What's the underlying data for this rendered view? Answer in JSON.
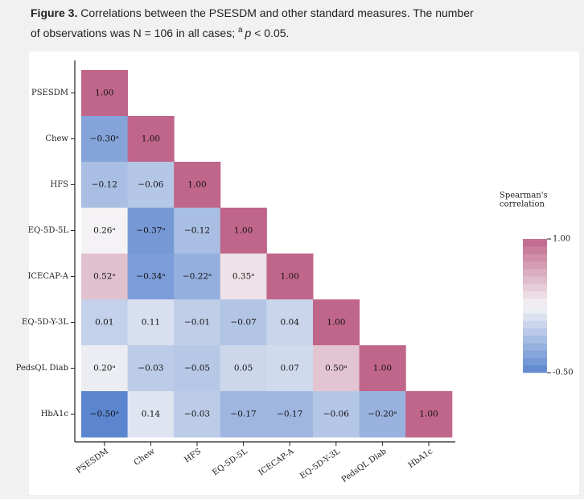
{
  "caption": {
    "label": "Figure 3.",
    "line1": " Correlations between the PSESDM and other standard measures. The number",
    "line2_start": "of observations was N = 106 in all cases; ",
    "superscript": "a",
    "italic": "p",
    "line2_end": " < 0.05."
  },
  "chart_data": {
    "type": "heatmap",
    "rows": [
      "PSESDM",
      "Chew",
      "HFS",
      "EQ-5D-5L",
      "ICECAP-A",
      "EQ-5D-Y-3L",
      "PedsQL Diab",
      "HbA1c"
    ],
    "columns": [
      "PSESDM",
      "Chew",
      "HFS",
      "EQ-5D-5L",
      "ICECAP-A",
      "EQ-5D-Y-3L",
      "PedsQL Diab",
      "HbA1c"
    ],
    "values": [
      [
        1.0,
        null,
        null,
        null,
        null,
        null,
        null,
        null
      ],
      [
        -0.3,
        1.0,
        null,
        null,
        null,
        null,
        null,
        null
      ],
      [
        -0.12,
        -0.06,
        1.0,
        null,
        null,
        null,
        null,
        null
      ],
      [
        0.26,
        -0.37,
        -0.12,
        1.0,
        null,
        null,
        null,
        null
      ],
      [
        0.52,
        -0.34,
        -0.22,
        0.35,
        1.0,
        null,
        null,
        null
      ],
      [
        0.01,
        0.11,
        -0.01,
        -0.07,
        0.04,
        1.0,
        null,
        null
      ],
      [
        0.2,
        -0.03,
        -0.05,
        0.05,
        0.07,
        0.5,
        1.0,
        null
      ],
      [
        -0.5,
        0.14,
        -0.03,
        -0.17,
        -0.17,
        -0.06,
        -0.2,
        1.0
      ]
    ],
    "value_labels": [
      [
        "1.00",
        null,
        null,
        null,
        null,
        null,
        null,
        null
      ],
      [
        "−0.30ᵃ",
        "1.00",
        null,
        null,
        null,
        null,
        null,
        null
      ],
      [
        "−0.12",
        "−0.06",
        "1.00",
        null,
        null,
        null,
        null,
        null
      ],
      [
        "0.26ᵃ",
        "−0.37ᵃ",
        "−0.12",
        "1.00",
        null,
        null,
        null,
        null
      ],
      [
        "0.52ᵃ",
        "−0.34ᵃ",
        "−0.22ᵃ",
        "0.35ᵃ",
        "1.00",
        null,
        null,
        null
      ],
      [
        "0.01",
        "0.11",
        "−0.01",
        "−0.07",
        "0.04",
        "1.00",
        null,
        null
      ],
      [
        "0.20ᵃ",
        "−0.03",
        "−0.05",
        "0.05",
        "0.07",
        "0.50ᵃ",
        "1.00",
        null
      ],
      [
        "−0.50ᵃ",
        "0.14",
        "−0.03",
        "−0.17",
        "−0.17",
        "−0.06",
        "−0.20ᵃ",
        "1.00"
      ]
    ],
    "colorscale": [
      [
        -0.5,
        "#5b86cf"
      ],
      [
        0.25,
        "#f5f4f6"
      ],
      [
        1.0,
        "#c0668a"
      ]
    ],
    "legend_title": [
      "Spearman's",
      "correlation"
    ],
    "clim": [
      -0.5,
      1.0
    ],
    "cticks": [
      {
        "value": 1.0,
        "label": "1.00"
      },
      {
        "value": -0.5,
        "label": "-0.50"
      }
    ]
  }
}
